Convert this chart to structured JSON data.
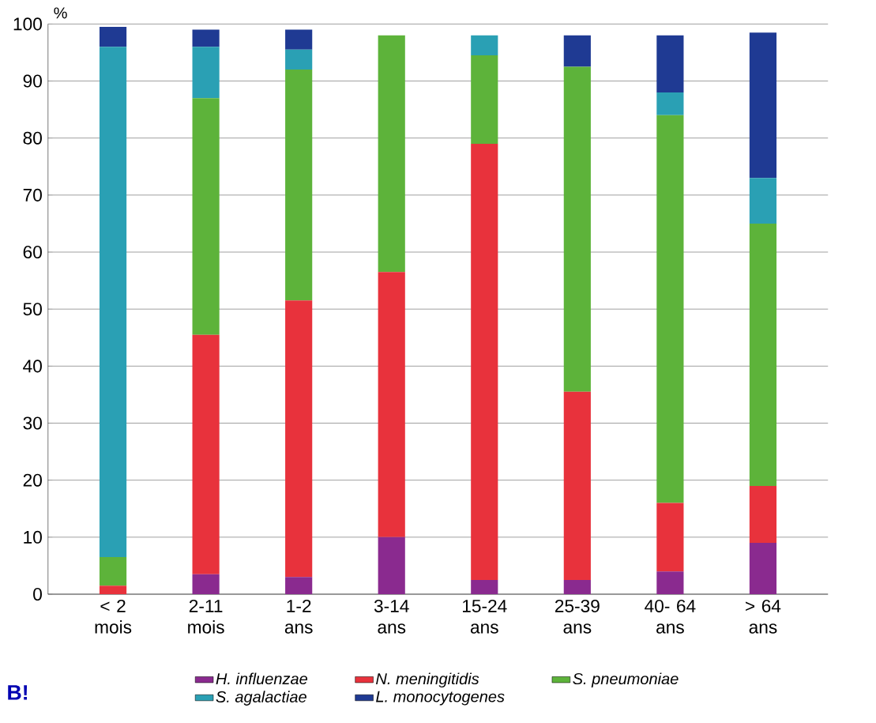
{
  "chart_data": {
    "type": "bar",
    "stacked": true,
    "ylabel": "%",
    "categories": [
      "< 2 mois",
      "2-11 mois",
      "1-2 ans",
      "3-14 ans",
      "15-24 ans",
      "25-39 ans",
      "40- 64 ans",
      "> 64 ans"
    ],
    "series": [
      {
        "name": "H. influenzae",
        "color": "#8a2a8f",
        "values": [
          0,
          3.5,
          3,
          10,
          2.5,
          2.5,
          4,
          9
        ]
      },
      {
        "name": "N. meningitidis",
        "color": "#e8323c",
        "values": [
          1.5,
          42,
          48.5,
          46.5,
          76.5,
          33,
          12,
          10
        ]
      },
      {
        "name": "S. pneumoniae",
        "color": "#5db33a",
        "values": [
          5,
          41.5,
          40.5,
          41.5,
          15.5,
          57,
          68,
          46
        ]
      },
      {
        "name": "S. agalactiae",
        "color": "#2aa0b4",
        "values": [
          89.5,
          9,
          3.5,
          0,
          3.5,
          0,
          4,
          8
        ]
      },
      {
        "name": "L. monocytogenes",
        "color": "#1f3a93",
        "values": [
          3.5,
          3,
          3.5,
          0,
          0,
          5.5,
          10,
          25.5
        ]
      }
    ],
    "ylim": [
      0,
      100
    ],
    "yticks": [
      0,
      10,
      20,
      30,
      40,
      50,
      60,
      70,
      80,
      90,
      100
    ],
    "grid": "y",
    "legend": "bottom",
    "annotations": [
      "B!"
    ]
  }
}
